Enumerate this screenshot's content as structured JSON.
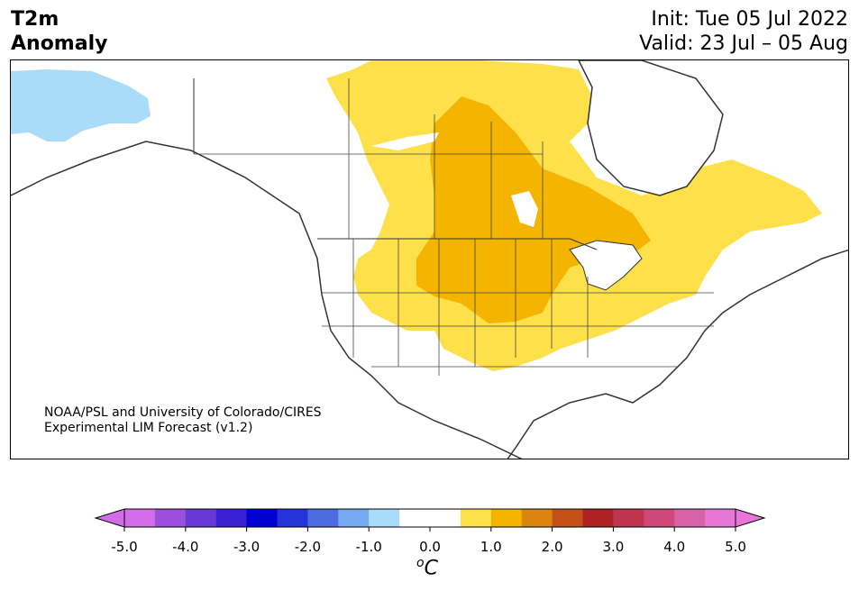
{
  "title": {
    "variable": "T2m",
    "subtitle": "Anomaly",
    "init": "Init: Tue 05 Jul 2022",
    "valid": "Valid: 23 Jul – 05 Aug"
  },
  "credit": {
    "line1": "NOAA/PSL and University of Colorado/CIRES",
    "line2": "Experimental LIM Forecast (v1.2)"
  },
  "colorbar": {
    "unit_base": "C",
    "unit_sup": "o",
    "ticks": [
      "-5.0",
      "-4.0",
      "-3.0",
      "-2.0",
      "-1.0",
      "0.0",
      "1.0",
      "2.0",
      "3.0",
      "4.0",
      "5.0"
    ],
    "colors": [
      "#d36ce8",
      "#9b4fdc",
      "#6a38d6",
      "#3a20d0",
      "#0000d0",
      "#2434d8",
      "#4a6ce0",
      "#74aaf0",
      "#aadcfa",
      "#ffffff",
      "#ffffff",
      "#fde04a",
      "#f4b400",
      "#dc8410",
      "#c45018",
      "#ae2224",
      "#c03450",
      "#d04878",
      "#d862a8",
      "#e876d8"
    ],
    "extend_low": "#d36ce8",
    "extend_high": "#e876d8"
  },
  "map": {
    "region": "North America",
    "anomaly_colors": {
      "cool": "#aadcfa",
      "warm_light": "#fde04a",
      "warm_mid": "#f4b400"
    }
  }
}
